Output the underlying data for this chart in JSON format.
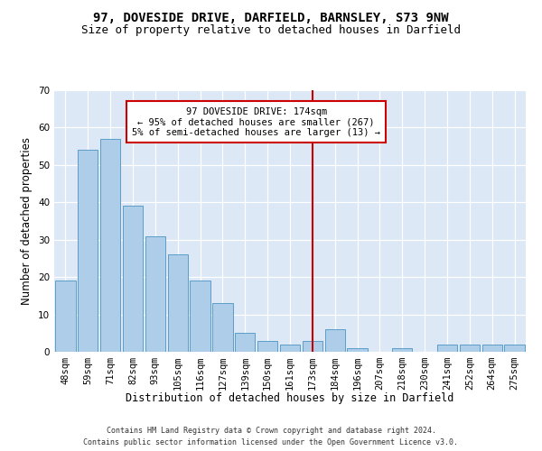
{
  "title1": "97, DOVESIDE DRIVE, DARFIELD, BARNSLEY, S73 9NW",
  "title2": "Size of property relative to detached houses in Darfield",
  "xlabel": "Distribution of detached houses by size in Darfield",
  "ylabel": "Number of detached properties",
  "footer1": "Contains HM Land Registry data © Crown copyright and database right 2024.",
  "footer2": "Contains public sector information licensed under the Open Government Licence v3.0.",
  "categories": [
    "48sqm",
    "59sqm",
    "71sqm",
    "82sqm",
    "93sqm",
    "105sqm",
    "116sqm",
    "127sqm",
    "139sqm",
    "150sqm",
    "161sqm",
    "173sqm",
    "184sqm",
    "196sqm",
    "207sqm",
    "218sqm",
    "230sqm",
    "241sqm",
    "252sqm",
    "264sqm",
    "275sqm"
  ],
  "values": [
    19,
    54,
    57,
    39,
    31,
    26,
    19,
    13,
    5,
    3,
    2,
    3,
    6,
    1,
    0,
    1,
    0,
    2,
    2,
    2,
    2
  ],
  "bar_color": "#aecde8",
  "bar_edge_color": "#5a9ec8",
  "background_color": "#dce8f5",
  "annotation_text": "97 DOVESIDE DRIVE: 174sqm\n← 95% of detached houses are smaller (267)\n5% of semi-detached houses are larger (13) →",
  "vline_x_index": 11,
  "vline_color": "#cc0000",
  "annotation_box_color": "#cc0000",
  "ylim": [
    0,
    70
  ],
  "yticks": [
    0,
    10,
    20,
    30,
    40,
    50,
    60,
    70
  ],
  "title_fontsize": 10,
  "subtitle_fontsize": 9,
  "axis_label_fontsize": 8.5,
  "tick_fontsize": 7.5,
  "footer_fontsize": 6,
  "annotation_fontsize": 7.5
}
